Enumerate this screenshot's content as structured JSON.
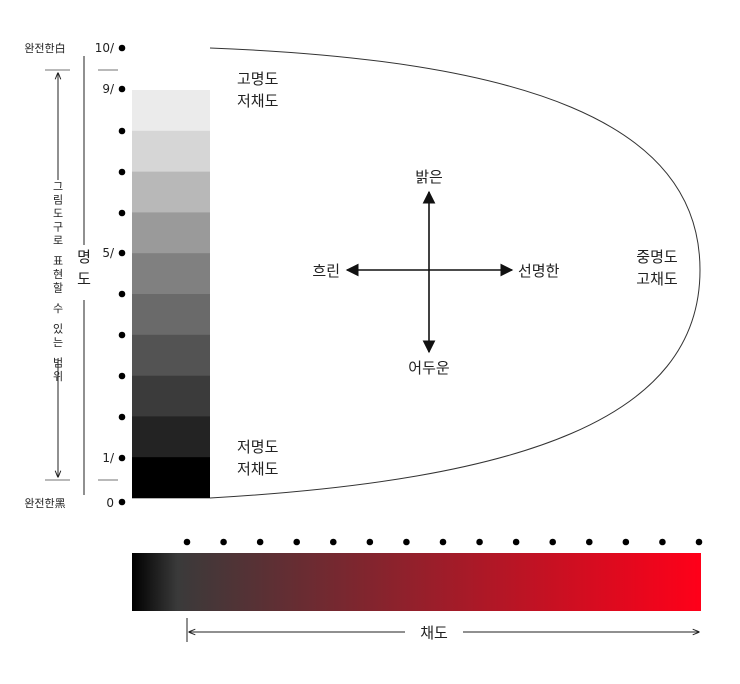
{
  "left_axis": {
    "top_label": "완전한白",
    "bottom_label": "완전한黑",
    "range_label": "그림도구로 표현할 수 있는 범위",
    "axis_label": "명도",
    "ticks": [
      "10/",
      "9/",
      "5/",
      "1/",
      "0"
    ]
  },
  "gray_scale": [
    "#ebebeb",
    "#d6d6d6",
    "#b8b8b8",
    "#9a9a9a",
    "#808080",
    "#6a6a6a",
    "#535353",
    "#3b3b3b",
    "#232323",
    "#000000"
  ],
  "regions": {
    "top": [
      "고명도",
      "저채도"
    ],
    "bottom": [
      "저명도",
      "저채도"
    ],
    "right": [
      "중명도",
      "고채도"
    ]
  },
  "compass": {
    "up": "밝은",
    "down": "어두운",
    "left": "흐린",
    "right": "선명한"
  },
  "chroma_axis": {
    "label": "채도",
    "gradient_start": "#000000",
    "gradient_mid": "#3a3a3a",
    "gradient_end": "#ff0019",
    "dot_count": 15
  }
}
